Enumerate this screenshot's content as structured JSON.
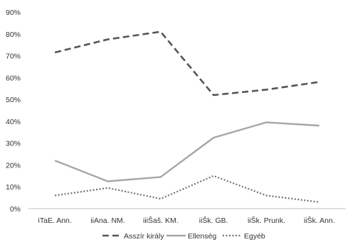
{
  "chart_data": {
    "type": "line",
    "title": "",
    "xlabel": "",
    "ylabel": "",
    "categories": [
      "iTaE. Ann.",
      "iiAna. NM.",
      "iiiŠaš. KM.",
      "iiŠk. GB.",
      "iiŠk. Prunk.",
      "iiŠk. Ann."
    ],
    "ylim": [
      0,
      90
    ],
    "yticks": [
      0,
      10,
      20,
      30,
      40,
      50,
      60,
      70,
      80,
      90
    ],
    "ytick_labels": [
      "0%",
      "10%",
      "20%",
      "30%",
      "40%",
      "50%",
      "60%",
      "70%",
      "80%",
      "90%"
    ],
    "grid": false,
    "legend_position": "bottom",
    "series": [
      {
        "name": "Asszír király",
        "values": [
          71.5,
          77.5,
          81,
          52,
          54.5,
          58
        ],
        "color": "#555555",
        "style": "dashed"
      },
      {
        "name": "Ellenség",
        "values": [
          22,
          12.5,
          14.5,
          32.5,
          39.5,
          38
        ],
        "color": "#a6a6a6",
        "style": "solid"
      },
      {
        "name": "Egyéb",
        "values": [
          6,
          9.5,
          4.5,
          15,
          6,
          3
        ],
        "color": "#707070",
        "style": "dotted"
      }
    ]
  }
}
